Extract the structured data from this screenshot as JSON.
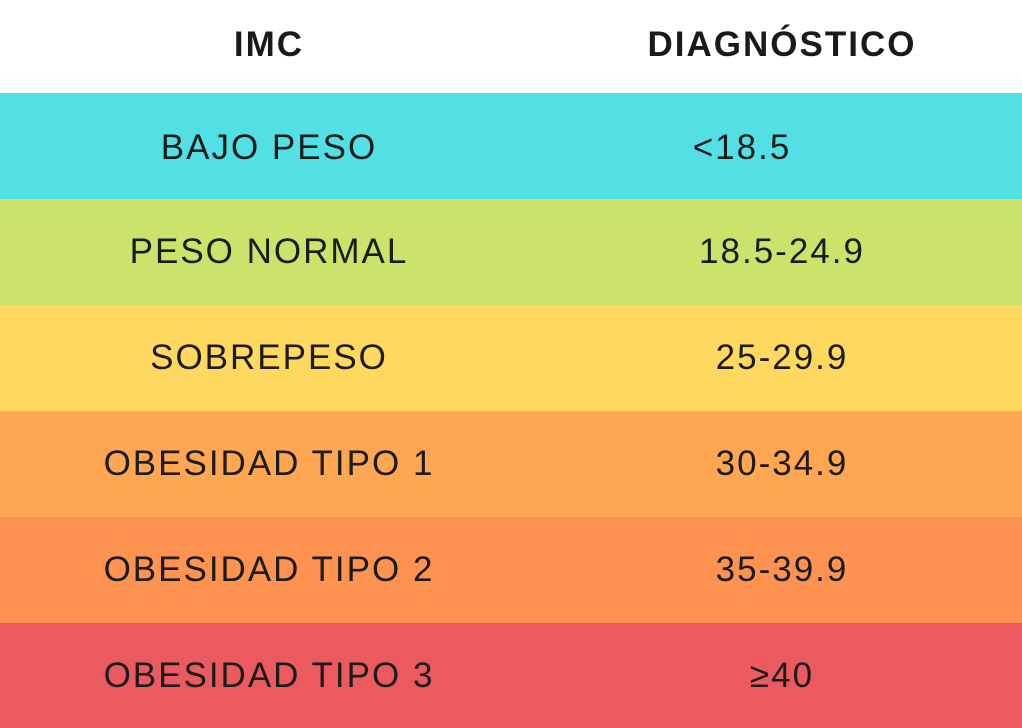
{
  "header": {
    "col1": "IMC",
    "col2": "DIAGNÓSTICO"
  },
  "rows": [
    {
      "label": "BAJO PESO",
      "range": "<18.5",
      "color": "#53E0E5"
    },
    {
      "label": "PESO NORMAL",
      "range": "18.5-24.9",
      "color": "#C9E36B"
    },
    {
      "label": "SOBREPESO",
      "range": "25-29.9",
      "color": "#FFD95F"
    },
    {
      "label": "OBESIDAD TIPO 1",
      "range": "30-34.9",
      "color": "#FEA651"
    },
    {
      "label": "OBESIDAD TIPO 2",
      "range": "35-39.9",
      "color": "#FE9250"
    },
    {
      "label": "OBESIDAD TIPO 3",
      "range": "≥40",
      "color": "#EB5A5E"
    }
  ]
}
